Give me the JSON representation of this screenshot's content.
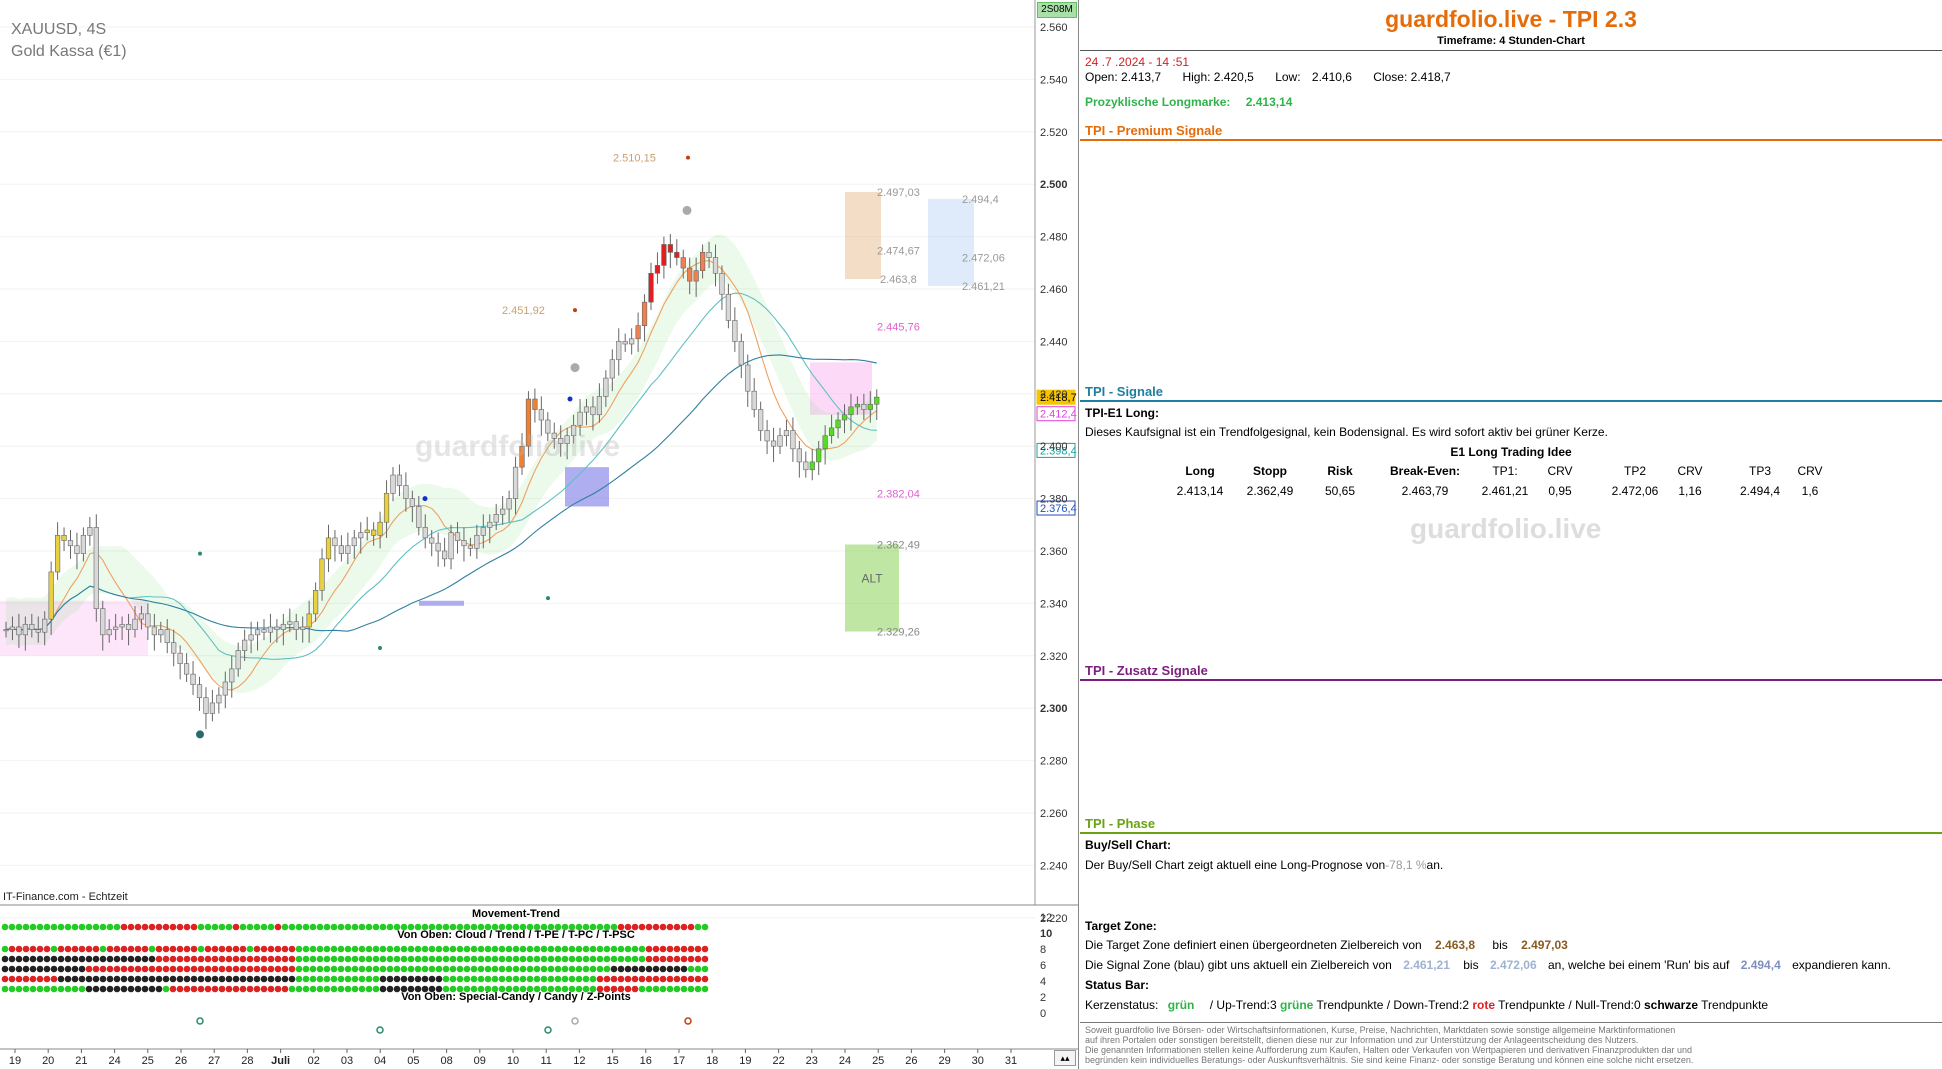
{
  "chart_header": {
    "symbol": "XAUUSD, 4S",
    "instrument": "Gold Kassa (€1)",
    "source": "IT-Finance.com - Echtzeit",
    "badge": "2S08M",
    "watermark": "guardfolio.live"
  },
  "colors": {
    "orange": "#e46c0a",
    "teal": "#1f7f9f",
    "purple": "#7b1f7f",
    "green": "#6aa312",
    "candle_up_green": "#55dd22",
    "candle_red": "#e02020",
    "candle_yellow": "#e8d040",
    "candle_gray": "#d8d8d8",
    "signal_green": "#2fb34a",
    "dot_red": "#e02020"
  },
  "chart_data": {
    "type": "candlestick",
    "title": "XAUUSD, 4S",
    "subtitle": "Gold Kassa (€1)",
    "ylim": [
      2210,
      2570
    ],
    "y_ticks": [
      2560,
      2540,
      2520,
      2500,
      2480,
      2460,
      2440,
      2420,
      2400,
      2380,
      2360,
      2340,
      2320,
      2300,
      2280,
      2260,
      2240,
      2220
    ],
    "y_tick_labels": [
      "2.560",
      "2.540",
      "2.520",
      "2.500",
      "2.480",
      "2.460",
      "2.440",
      "2.420",
      "2.400",
      "2.380",
      "2.360",
      "2.340",
      "2.320",
      "2.300",
      "2.280",
      "2.260",
      "2.240",
      "2.220"
    ],
    "x_tick_labels": [
      "19",
      "20",
      "21",
      "24",
      "25",
      "26",
      "27",
      "28",
      "Juli",
      "02",
      "03",
      "04",
      "05",
      "08",
      "09",
      "10",
      "11",
      "12",
      "15",
      "16",
      "17",
      "18",
      "19",
      "22",
      "23",
      "24",
      "25",
      "26",
      "29",
      "30",
      "31"
    ],
    "price_tags": [
      {
        "label": "2.418,7",
        "value": 2418.7,
        "color": "#f6c400"
      },
      {
        "label": "2.412,4",
        "value": 2412.4,
        "color": "#e040e0"
      },
      {
        "label": "2.398,4",
        "value": 2398.4,
        "color": "#20a0a0"
      },
      {
        "label": "2.376,4",
        "value": 2376.4,
        "color": "#2050c0"
      }
    ],
    "levels": [
      {
        "label": "2.510,15",
        "value": 2510.15
      },
      {
        "label": "2.497,03",
        "value": 2497.03
      },
      {
        "label": "2.494,4",
        "value": 2494.4
      },
      {
        "label": "2.474,67",
        "value": 2474.67
      },
      {
        "label": "2.472,06",
        "value": 2472.06
      },
      {
        "label": "2.463,8",
        "value": 2463.8
      },
      {
        "label": "2.461,21",
        "value": 2461.21
      },
      {
        "label": "2.451,92",
        "value": 2451.92
      },
      {
        "label": "2.445,76",
        "value": 2445.76
      },
      {
        "label": "2.382,04",
        "value": 2382.04
      },
      {
        "label": "2.362,49",
        "value": 2362.49
      },
      {
        "label": "2.329,26",
        "value": 2329.26
      }
    ],
    "zone_label": "ALT",
    "closes": [
      2330,
      2331,
      2328,
      2332,
      2330,
      2329,
      2334,
      2352,
      2366,
      2364,
      2362,
      2359,
      2366,
      2369,
      2338,
      2328,
      2330,
      2331,
      2332,
      2330,
      2334,
      2336,
      2331,
      2328,
      2330,
      2325,
      2321,
      2317,
      2313,
      2309,
      2304,
      2298,
      2302,
      2305,
      2310,
      2315,
      2322,
      2326,
      2328,
      2330,
      2329,
      2331,
      2330,
      2332,
      2333,
      2330,
      2331,
      2336,
      2345,
      2357,
      2365,
      2362,
      2359,
      2362,
      2365,
      2367,
      2368,
      2366,
      2371,
      2382,
      2389,
      2385,
      2380,
      2377,
      2369,
      2365,
      2363,
      2360,
      2357,
      2367,
      2364,
      2362,
      2361,
      2366,
      2369,
      2371,
      2374,
      2376,
      2380,
      2392,
      2400,
      2418,
      2414,
      2410,
      2405,
      2403,
      2401,
      2404,
      2408,
      2413,
      2415,
      2412,
      2419,
      2426,
      2433,
      2440,
      2439,
      2441,
      2446,
      2455,
      2466,
      2469,
      2477,
      2474,
      2472,
      2468,
      2463,
      2467,
      2474,
      2472,
      2466,
      2458,
      2448,
      2440,
      2431,
      2421,
      2414,
      2406,
      2402,
      2400,
      2404,
      2406,
      2399,
      2394,
      2391,
      2394,
      2399,
      2404,
      2407,
      2410,
      2412,
      2415,
      2416,
      2414,
      2416,
      2418.7
    ],
    "series": [
      {
        "name": "",
        "values": []
      }
    ]
  },
  "indicator": {
    "title1": "Movement-Trend",
    "title2": "Von Oben: Cloud / Trend / T-PE / T-PC / T-PSC",
    "title3": "Von Oben: Special-Candy / Candy / Z-Points",
    "ticks": [
      "12",
      "10",
      "8",
      "6",
      "4",
      "2",
      "0"
    ]
  },
  "panel": {
    "brand": "guardfolio.live - TPI 2.3",
    "timeframe": "Timeframe: 4 Stunden-Chart",
    "datetime": "24 .7 .2024  - 14 :51",
    "ohlc": {
      "open_label": "Open:",
      "open": "2.413,7",
      "high_label": "High:",
      "high": "2.420,5",
      "low_label": "Low:",
      "low": "2.410,6",
      "close_label": "Close:",
      "close": "2.418,7"
    },
    "longmark_label": "Prozyklische Longmarke:",
    "longmark_value": "2.413,14",
    "premium_title": "TPI - Premium Signale",
    "signals_title": "TPI - Signale",
    "signal_name": "TPI-E1 Long:",
    "signal_text": "Dieses Kaufsignal ist ein Trendfolgesignal, kein Bodensignal. Es wird sofort aktiv bei grüner Kerze.",
    "trade_title": "E1 Long Trading Idee",
    "trade_headers": [
      "Long",
      "Stopp",
      "Risk",
      "Break-Even:",
      "TP1:",
      "CRV",
      "TP2",
      "CRV",
      "TP3",
      "CRV"
    ],
    "trade_values": [
      "2.413,14",
      "2.362,49",
      "50,65",
      "2.463,79",
      "2.461,21",
      "0,95",
      "2.472,06",
      "1,16",
      "2.494,4",
      "1,6"
    ],
    "watermark": "guardfolio.live",
    "zusatz_title": "TPI - Zusatz Signale",
    "phase_title": "TPI - Phase",
    "buysell_title": "Buy/Sell Chart:",
    "buysell_pre": "Der Buy/Sell Chart zeigt aktuell eine Long-Prognose von",
    "buysell_value": "-78,1 %",
    "buysell_post": "an.",
    "target_title": "Target Zone:",
    "target_pre": "Die Target Zone definiert einen übergeordneten Zielbereich von",
    "target_from": "2.463,8",
    "target_mid": "bis",
    "target_to": "2.497,03",
    "signalzone_pre": "Die Signal Zone (blau) gibt uns aktuell ein Zielbereich von",
    "signalzone_from": "2.461,21",
    "signalzone_mid": "bis",
    "signalzone_to": "2.472,06",
    "signalzone_post": "an, welche bei einem 'Run' bis auf",
    "signalzone_run": "2.494,4",
    "signalzone_end": "expandieren kann.",
    "status_title": "Status Bar:",
    "status_k1": "Kerzenstatus:",
    "status_k2": "grün",
    "status_k3": "/ Up-Trend:3",
    "status_k4": "grüne",
    "status_k5": "Trendpunkte  / Down-Trend:2",
    "status_k6": "rote",
    "status_k7": "Trendpunkte / Null-Trend:0",
    "status_k8": "schwarze",
    "status_k9": "Trendpunkte",
    "disclaimer": [
      "Soweit guardfolio live Börsen- oder Wirtschaftsinformationen, Kurse, Preise, Nachrichten, Marktdaten sowie sonstige allgemeine Marktinformationen",
      "auf ihren Portalen oder sonstigen bereitstellt, dienen diese nur zur Information und zur Unterstützung der Anlageentscheidung des Nutzers.",
      "Die genannten Informationen stellen keine Aufforderung zum Kaufen, Halten oder Verkaufen von Wertpapieren und derivativen Finanzprodukten dar und",
      "begründen kein individuelles Beratungs- oder Auskunftsverhältnis. Sie sind keine Finanz- oder sonstige Beratung und können eine solche nicht ersetzen."
    ]
  }
}
